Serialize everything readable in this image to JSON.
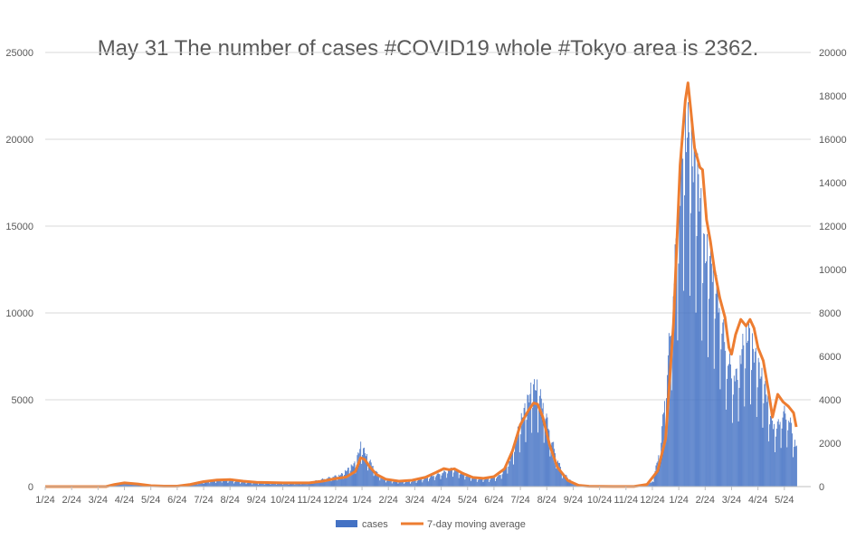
{
  "chart_data": {
    "type": "bar",
    "title": "May 31 The number of cases #COVID19 whole #Tokyo area is 2362.",
    "x_tick_labels": [
      "1/24",
      "2/24",
      "3/24",
      "4/24",
      "5/24",
      "6/24",
      "7/24",
      "8/24",
      "9/24",
      "10/24",
      "11/24",
      "12/24",
      "1/24",
      "2/24",
      "3/24",
      "4/24",
      "5/24",
      "6/24",
      "7/24",
      "8/24",
      "9/24",
      "10/24",
      "11/24",
      "12/24",
      "1/24",
      "2/24",
      "3/24",
      "4/24",
      "5/24"
    ],
    "y_left": {
      "min": 0,
      "max": 25000,
      "ticks": [
        "0",
        "5000",
        "10000",
        "15000",
        "20000",
        "25000"
      ]
    },
    "y_right": {
      "min": 0,
      "max": 20000,
      "ticks": [
        "0",
        "2000",
        "4000",
        "6000",
        "8000",
        "10000",
        "12000",
        "14000",
        "16000",
        "18000",
        "20000"
      ]
    },
    "grid": true,
    "legend_position": "bottom",
    "series": [
      {
        "name": "cases",
        "kind": "bar",
        "axis": "left",
        "color": "#4472C4",
        "note_points_are_month_index_and_value": true,
        "profile": [
          [
            0,
            0
          ],
          [
            1.3,
            0
          ],
          [
            2.4,
            60
          ],
          [
            2.7,
            200
          ],
          [
            3.0,
            240
          ],
          [
            3.3,
            200
          ],
          [
            3.7,
            100
          ],
          [
            4.1,
            40
          ],
          [
            4.6,
            20
          ],
          [
            5.0,
            20
          ],
          [
            5.5,
            150
          ],
          [
            6.2,
            350
          ],
          [
            6.7,
            420
          ],
          [
            7.2,
            320
          ],
          [
            7.8,
            230
          ],
          [
            8.5,
            220
          ],
          [
            9.2,
            200
          ],
          [
            10.0,
            250
          ],
          [
            10.5,
            440
          ],
          [
            11.2,
            700
          ],
          [
            11.75,
            1400
          ],
          [
            11.95,
            2450
          ],
          [
            12.2,
            1700
          ],
          [
            12.6,
            700
          ],
          [
            13.0,
            350
          ],
          [
            13.7,
            280
          ],
          [
            14.3,
            450
          ],
          [
            15.0,
            800
          ],
          [
            15.4,
            1050
          ],
          [
            15.8,
            800
          ],
          [
            16.3,
            480
          ],
          [
            16.8,
            470
          ],
          [
            17.2,
            650
          ],
          [
            17.6,
            1600
          ],
          [
            18.0,
            3800
          ],
          [
            18.4,
            5600
          ],
          [
            18.6,
            5900
          ],
          [
            18.9,
            4500
          ],
          [
            19.2,
            2600
          ],
          [
            19.55,
            900
          ],
          [
            20.0,
            200
          ],
          [
            20.5,
            40
          ],
          [
            21.0,
            10
          ],
          [
            22.0,
            5
          ],
          [
            22.7,
            30
          ],
          [
            23.0,
            300
          ],
          [
            23.3,
            2300
          ],
          [
            23.7,
            9700
          ],
          [
            24.0,
            16500
          ],
          [
            24.2,
            21000
          ],
          [
            24.35,
            20500
          ],
          [
            24.55,
            18700
          ],
          [
            24.75,
            17600
          ],
          [
            24.95,
            13700
          ],
          [
            25.15,
            13500
          ],
          [
            25.35,
            12200
          ],
          [
            25.6,
            9800
          ],
          [
            25.85,
            7500
          ],
          [
            26.0,
            6700
          ],
          [
            26.2,
            6400
          ],
          [
            26.4,
            8100
          ],
          [
            26.65,
            9000
          ],
          [
            26.85,
            7700
          ],
          [
            27.05,
            6800
          ],
          [
            27.3,
            5500
          ],
          [
            27.55,
            3600
          ],
          [
            27.75,
            3600
          ],
          [
            27.95,
            4400
          ],
          [
            28.2,
            3900
          ],
          [
            28.35,
            2900
          ],
          [
            28.45,
            2362
          ]
        ]
      },
      {
        "name": "7-day moving average",
        "kind": "line",
        "axis": "right",
        "color": "#ED7D31",
        "note_points_are_month_index_and_value": true,
        "points": [
          [
            0,
            0
          ],
          [
            2.3,
            0
          ],
          [
            2.6,
            90
          ],
          [
            3.0,
            170
          ],
          [
            3.5,
            120
          ],
          [
            4.0,
            40
          ],
          [
            4.5,
            20
          ],
          [
            5.0,
            20
          ],
          [
            5.5,
            100
          ],
          [
            6.0,
            230
          ],
          [
            6.5,
            300
          ],
          [
            7.0,
            320
          ],
          [
            7.5,
            250
          ],
          [
            8.0,
            200
          ],
          [
            9.0,
            170
          ],
          [
            10.0,
            170
          ],
          [
            10.5,
            250
          ],
          [
            11.0,
            370
          ],
          [
            11.4,
            440
          ],
          [
            11.75,
            700
          ],
          [
            11.95,
            1330
          ],
          [
            12.1,
            1250
          ],
          [
            12.3,
            900
          ],
          [
            12.55,
            560
          ],
          [
            12.9,
            340
          ],
          [
            13.4,
            250
          ],
          [
            13.9,
            290
          ],
          [
            14.4,
            430
          ],
          [
            14.8,
            650
          ],
          [
            15.1,
            830
          ],
          [
            15.3,
            780
          ],
          [
            15.5,
            820
          ],
          [
            15.8,
            620
          ],
          [
            16.2,
            420
          ],
          [
            16.6,
            380
          ],
          [
            17.0,
            460
          ],
          [
            17.4,
            820
          ],
          [
            17.7,
            1650
          ],
          [
            18.0,
            2850
          ],
          [
            18.3,
            3500
          ],
          [
            18.5,
            3850
          ],
          [
            18.65,
            3800
          ],
          [
            18.85,
            3200
          ],
          [
            19.1,
            1950
          ],
          [
            19.4,
            900
          ],
          [
            19.8,
            280
          ],
          [
            20.2,
            60
          ],
          [
            20.6,
            15
          ],
          [
            21.5,
            5
          ],
          [
            22.3,
            5
          ],
          [
            22.8,
            100
          ],
          [
            23.2,
            720
          ],
          [
            23.5,
            2200
          ],
          [
            23.8,
            7500
          ],
          [
            24.05,
            14800
          ],
          [
            24.25,
            17800
          ],
          [
            24.35,
            18600
          ],
          [
            24.45,
            17400
          ],
          [
            24.6,
            15600
          ],
          [
            24.8,
            14700
          ],
          [
            24.9,
            14600
          ],
          [
            25.05,
            12300
          ],
          [
            25.2,
            11300
          ],
          [
            25.35,
            10000
          ],
          [
            25.55,
            8700
          ],
          [
            25.75,
            7800
          ],
          [
            25.9,
            6400
          ],
          [
            26.0,
            6100
          ],
          [
            26.15,
            7000
          ],
          [
            26.35,
            7700
          ],
          [
            26.55,
            7400
          ],
          [
            26.7,
            7700
          ],
          [
            26.85,
            7300
          ],
          [
            27.0,
            6400
          ],
          [
            27.2,
            5800
          ],
          [
            27.4,
            4400
          ],
          [
            27.55,
            3200
          ],
          [
            27.75,
            4250
          ],
          [
            27.95,
            3900
          ],
          [
            28.15,
            3700
          ],
          [
            28.35,
            3400
          ],
          [
            28.45,
            2750
          ]
        ]
      }
    ]
  }
}
